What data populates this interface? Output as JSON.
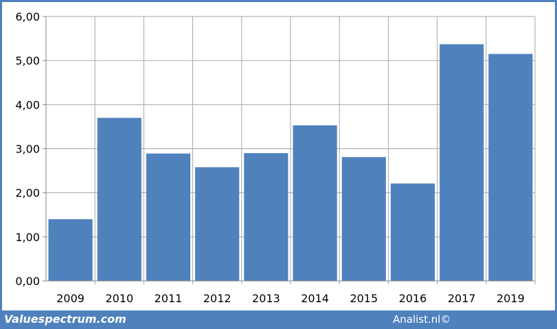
{
  "footer": {
    "left_text": "Valuespectrum.com",
    "right_text": "Analist.nl©"
  },
  "colors": {
    "bar": "#4f81bd",
    "frame": "#4f81bd",
    "grid": "#a6a6a6"
  },
  "chart_data": {
    "type": "bar",
    "categories": [
      "2009",
      "2010",
      "2011",
      "2012",
      "2013",
      "2014",
      "2015",
      "2016",
      "2017",
      "2019"
    ],
    "values": [
      1.4,
      3.7,
      2.89,
      2.58,
      2.9,
      3.53,
      2.81,
      2.21,
      5.37,
      5.15
    ],
    "title": "",
    "xlabel": "",
    "ylabel": "",
    "ylim": [
      0,
      6
    ],
    "yticks": [
      "0,00",
      "1,00",
      "2,00",
      "3,00",
      "4,00",
      "5,00",
      "6,00"
    ],
    "grid": true,
    "legend": "none"
  }
}
